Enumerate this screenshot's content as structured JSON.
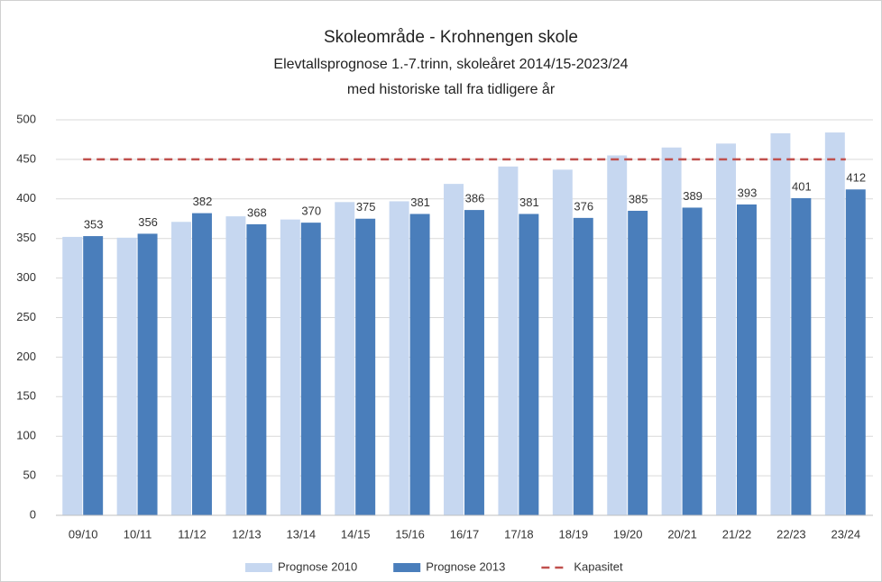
{
  "chart_data": {
    "type": "bar",
    "title": "Skoleområde - Krohnengen skole",
    "subtitle": [
      "Elevtallsprognose 1.-7.trinn, skoleåret 2014/15-2023/24",
      "med historiske tall fra tidligere år"
    ],
    "categories": [
      "09/10",
      "10/11",
      "11/12",
      "12/13",
      "13/14",
      "14/15",
      "15/16",
      "16/17",
      "17/18",
      "18/19",
      "19/20",
      "20/21",
      "21/22",
      "22/23",
      "23/24"
    ],
    "series": [
      {
        "name": "Prognose 2010",
        "color": "#c6d7f0",
        "values": [
          352,
          351,
          371,
          378,
          374,
          396,
          397,
          419,
          441,
          437,
          455,
          465,
          470,
          483,
          484
        ]
      },
      {
        "name": "Prognose 2013",
        "color": "#4a7ebb",
        "values": [
          353,
          356,
          382,
          368,
          370,
          375,
          381,
          386,
          381,
          376,
          385,
          389,
          393,
          401,
          412
        ],
        "data_labels": true
      },
      {
        "name": "Kapasitet",
        "color": "#c0504d",
        "type": "line",
        "dashed": true,
        "values": [
          450,
          450,
          450,
          450,
          450,
          450,
          450,
          450,
          450,
          450,
          450,
          450,
          450,
          450,
          450
        ]
      }
    ],
    "ylim": [
      0,
      500
    ],
    "yticks": [
      0,
      50,
      100,
      150,
      200,
      250,
      300,
      350,
      400,
      450,
      500
    ],
    "grid": true,
    "legend": "bottom"
  }
}
